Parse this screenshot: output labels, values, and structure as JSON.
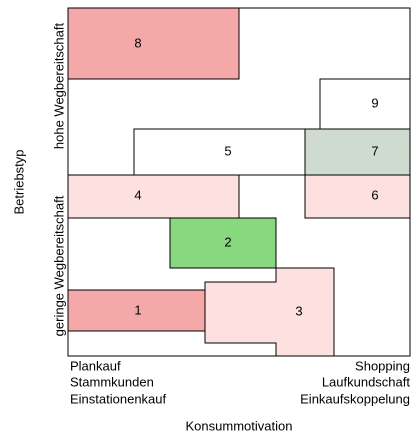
{
  "y_axis": {
    "title": "Betriebstyp",
    "high": "hohe Wegbereitschaft",
    "low": "geringe Wegbereitschaft"
  },
  "x_axis": {
    "title": "Konsummotivation",
    "left": [
      "Plankauf",
      "Stammkunden",
      "Einstationenkauf"
    ],
    "right": [
      "Shopping",
      "Laufkundschaft",
      "Einkaufskoppelung"
    ]
  },
  "regions": [
    {
      "label": "8"
    },
    {
      "label": "9"
    },
    {
      "label": "5"
    },
    {
      "label": "7"
    },
    {
      "label": "4"
    },
    {
      "label": "6"
    },
    {
      "label": "2"
    },
    {
      "label": "3"
    },
    {
      "label": "1"
    }
  ]
}
